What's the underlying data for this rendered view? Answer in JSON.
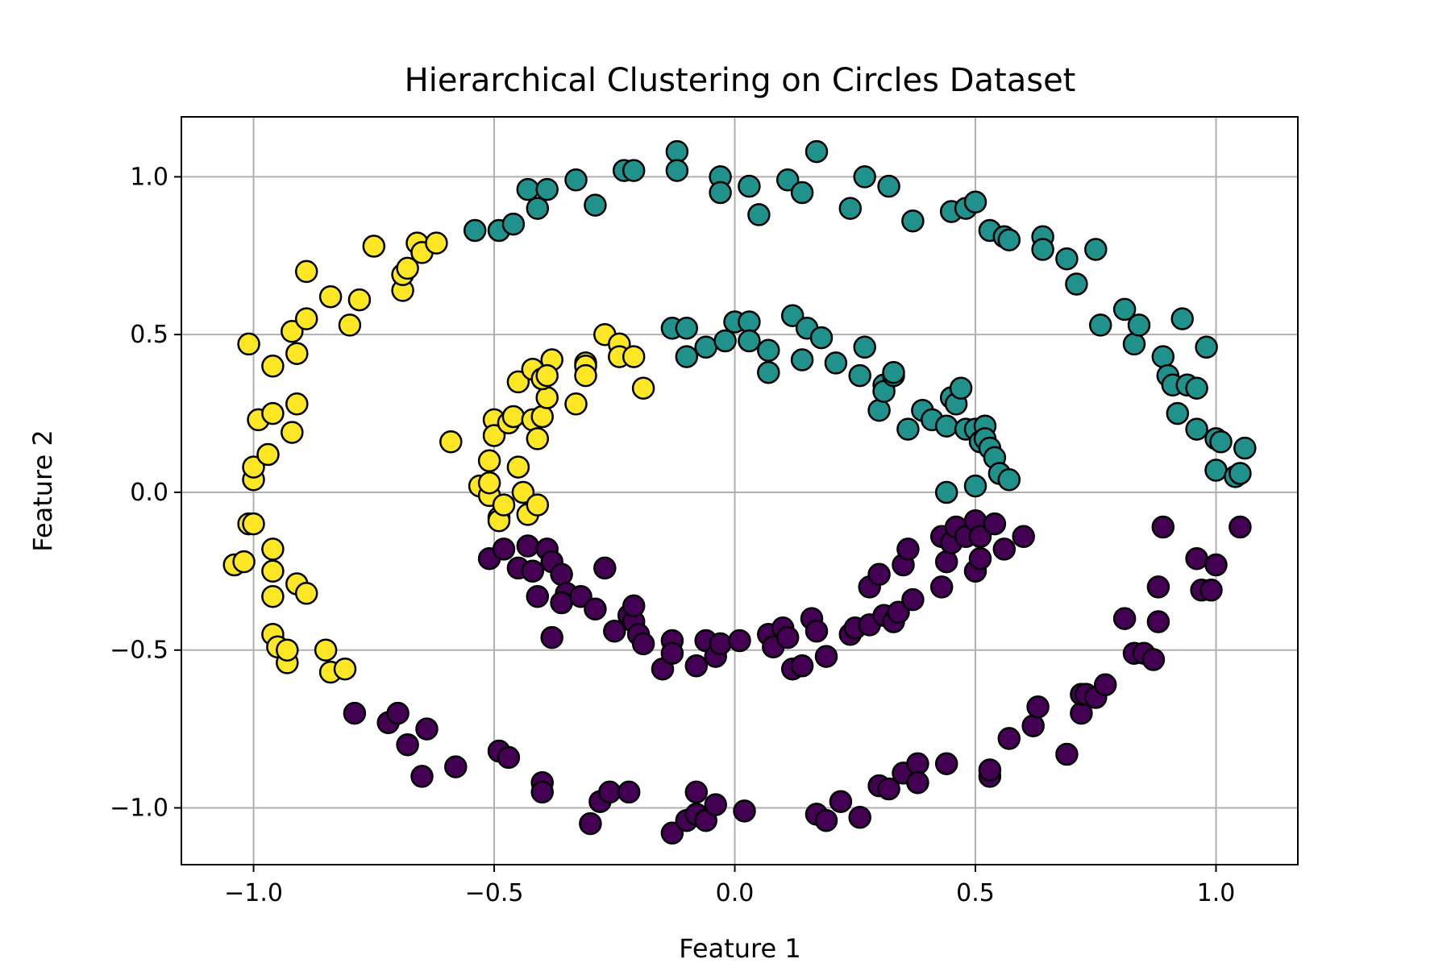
{
  "chart_data": {
    "type": "scatter",
    "title": "Hierarchical Clustering on Circles Dataset",
    "xlabel": "Feature 1",
    "ylabel": "Feature 2",
    "xlim": [
      -1.15,
      1.17
    ],
    "ylim": [
      -1.18,
      1.19
    ],
    "grid": true,
    "x_ticks": [
      -1.0,
      -0.5,
      0.0,
      0.5,
      1.0
    ],
    "x_tick_labels": [
      "−1.0",
      "−0.5",
      "0.0",
      "0.5",
      "1.0"
    ],
    "y_ticks": [
      -1.0,
      -0.5,
      0.0,
      0.5,
      1.0
    ],
    "y_tick_labels": [
      "−1.0",
      "−0.5",
      "0.0",
      "0.5",
      "1.0"
    ],
    "colormap": "viridis",
    "cluster_colors": [
      "#440154",
      "#21918c",
      "#fde725"
    ],
    "series": [
      {
        "color": "#440154",
        "points": [
          [
            -0.79,
            -0.7
          ],
          [
            -0.72,
            -0.73
          ],
          [
            -0.7,
            -0.7
          ],
          [
            -0.68,
            -0.8
          ],
          [
            -0.64,
            -0.75
          ],
          [
            -0.65,
            -0.9
          ],
          [
            -0.58,
            -0.87
          ],
          [
            -0.49,
            -0.82
          ],
          [
            -0.47,
            -0.84
          ],
          [
            -0.4,
            -0.92
          ],
          [
            -0.4,
            -0.95
          ],
          [
            -0.3,
            -1.05
          ],
          [
            -0.28,
            -0.98
          ],
          [
            -0.26,
            -0.95
          ],
          [
            -0.22,
            -0.95
          ],
          [
            -0.13,
            -1.08
          ],
          [
            -0.1,
            -1.04
          ],
          [
            -0.08,
            -0.95
          ],
          [
            -0.08,
            -1.02
          ],
          [
            -0.06,
            -1.04
          ],
          [
            -0.04,
            -0.99
          ],
          [
            0.02,
            -1.01
          ],
          [
            0.17,
            -1.02
          ],
          [
            0.19,
            -1.04
          ],
          [
            0.22,
            -0.98
          ],
          [
            0.26,
            -1.03
          ],
          [
            0.3,
            -0.93
          ],
          [
            0.32,
            -0.94
          ],
          [
            0.35,
            -0.89
          ],
          [
            0.38,
            -0.86
          ],
          [
            0.38,
            -0.92
          ],
          [
            0.44,
            -0.86
          ],
          [
            0.53,
            -0.9
          ],
          [
            0.53,
            -0.88
          ],
          [
            0.57,
            -0.78
          ],
          [
            0.62,
            -0.74
          ],
          [
            0.63,
            -0.68
          ],
          [
            0.69,
            -0.83
          ],
          [
            0.72,
            -0.7
          ],
          [
            0.72,
            -0.64
          ],
          [
            0.73,
            -0.64
          ],
          [
            0.75,
            -0.65
          ],
          [
            0.77,
            -0.61
          ],
          [
            0.81,
            -0.4
          ],
          [
            0.83,
            -0.51
          ],
          [
            0.85,
            -0.51
          ],
          [
            0.87,
            -0.53
          ],
          [
            0.88,
            -0.41
          ],
          [
            0.88,
            -0.3
          ],
          [
            0.89,
            -0.11
          ],
          [
            0.96,
            -0.21
          ],
          [
            0.97,
            -0.31
          ],
          [
            0.99,
            -0.31
          ],
          [
            1.0,
            -0.23
          ],
          [
            1.05,
            -0.11
          ],
          [
            -0.51,
            -0.21
          ],
          [
            -0.48,
            -0.18
          ],
          [
            -0.45,
            -0.24
          ],
          [
            -0.43,
            -0.17
          ],
          [
            -0.42,
            -0.25
          ],
          [
            -0.41,
            -0.33
          ],
          [
            -0.39,
            -0.18
          ],
          [
            -0.38,
            -0.22
          ],
          [
            -0.36,
            -0.26
          ],
          [
            -0.35,
            -0.32
          ],
          [
            -0.36,
            -0.35
          ],
          [
            -0.38,
            -0.46
          ],
          [
            -0.32,
            -0.33
          ],
          [
            -0.29,
            -0.37
          ],
          [
            -0.27,
            -0.24
          ],
          [
            -0.25,
            -0.44
          ],
          [
            -0.22,
            -0.39
          ],
          [
            -0.21,
            -0.41
          ],
          [
            -0.21,
            -0.36
          ],
          [
            -0.2,
            -0.45
          ],
          [
            -0.19,
            -0.48
          ],
          [
            -0.15,
            -0.56
          ],
          [
            -0.13,
            -0.47
          ],
          [
            -0.13,
            -0.51
          ],
          [
            -0.08,
            -0.55
          ],
          [
            -0.06,
            -0.47
          ],
          [
            -0.04,
            -0.52
          ],
          [
            -0.03,
            -0.48
          ],
          [
            0.01,
            -0.47
          ],
          [
            0.07,
            -0.45
          ],
          [
            0.08,
            -0.49
          ],
          [
            0.1,
            -0.43
          ],
          [
            0.11,
            -0.46
          ],
          [
            0.12,
            -0.56
          ],
          [
            0.14,
            -0.55
          ],
          [
            0.16,
            -0.4
          ],
          [
            0.17,
            -0.44
          ],
          [
            0.19,
            -0.52
          ],
          [
            0.24,
            -0.45
          ],
          [
            0.25,
            -0.43
          ],
          [
            0.28,
            -0.42
          ],
          [
            0.28,
            -0.3
          ],
          [
            0.3,
            -0.26
          ],
          [
            0.31,
            -0.39
          ],
          [
            0.33,
            -0.41
          ],
          [
            0.34,
            -0.38
          ],
          [
            0.35,
            -0.23
          ],
          [
            0.36,
            -0.18
          ],
          [
            0.37,
            -0.34
          ],
          [
            0.43,
            -0.3
          ],
          [
            0.43,
            -0.14
          ],
          [
            0.44,
            -0.22
          ],
          [
            0.45,
            -0.16
          ],
          [
            0.46,
            -0.11
          ],
          [
            0.48,
            -0.14
          ],
          [
            0.5,
            -0.09
          ],
          [
            0.5,
            -0.25
          ],
          [
            0.51,
            -0.21
          ],
          [
            0.51,
            -0.14
          ],
          [
            0.54,
            -0.1
          ],
          [
            0.56,
            -0.18
          ],
          [
            0.6,
            -0.14
          ]
        ]
      },
      {
        "color": "#21918c",
        "points": [
          [
            -0.54,
            0.83
          ],
          [
            -0.49,
            0.83
          ],
          [
            -0.46,
            0.85
          ],
          [
            -0.43,
            0.96
          ],
          [
            -0.41,
            0.9
          ],
          [
            -0.39,
            0.96
          ],
          [
            -0.33,
            0.99
          ],
          [
            -0.29,
            0.91
          ],
          [
            -0.23,
            1.02
          ],
          [
            -0.21,
            1.02
          ],
          [
            -0.12,
            1.08
          ],
          [
            -0.12,
            1.02
          ],
          [
            -0.03,
            1.0
          ],
          [
            -0.03,
            0.95
          ],
          [
            0.03,
            0.97
          ],
          [
            0.05,
            0.88
          ],
          [
            0.11,
            0.99
          ],
          [
            0.14,
            0.95
          ],
          [
            0.17,
            1.08
          ],
          [
            0.24,
            0.9
          ],
          [
            0.27,
            1.0
          ],
          [
            0.32,
            0.97
          ],
          [
            0.37,
            0.86
          ],
          [
            0.45,
            0.89
          ],
          [
            0.48,
            0.9
          ],
          [
            0.5,
            0.92
          ],
          [
            0.53,
            0.83
          ],
          [
            0.56,
            0.81
          ],
          [
            0.57,
            0.8
          ],
          [
            0.64,
            0.81
          ],
          [
            0.64,
            0.77
          ],
          [
            0.69,
            0.74
          ],
          [
            0.71,
            0.66
          ],
          [
            0.75,
            0.77
          ],
          [
            0.76,
            0.53
          ],
          [
            0.81,
            0.58
          ],
          [
            0.83,
            0.47
          ],
          [
            0.84,
            0.53
          ],
          [
            0.89,
            0.43
          ],
          [
            0.9,
            0.37
          ],
          [
            0.91,
            0.34
          ],
          [
            0.92,
            0.25
          ],
          [
            0.93,
            0.55
          ],
          [
            0.94,
            0.34
          ],
          [
            0.96,
            0.33
          ],
          [
            0.96,
            0.2
          ],
          [
            0.98,
            0.46
          ],
          [
            1.0,
            0.17
          ],
          [
            1.0,
            0.07
          ],
          [
            1.01,
            0.16
          ],
          [
            1.04,
            0.05
          ],
          [
            1.05,
            0.06
          ],
          [
            1.06,
            0.14
          ],
          [
            -0.13,
            0.52
          ],
          [
            -0.1,
            0.52
          ],
          [
            -0.1,
            0.43
          ],
          [
            -0.06,
            0.46
          ],
          [
            -0.02,
            0.48
          ],
          [
            0.0,
            0.54
          ],
          [
            0.03,
            0.54
          ],
          [
            0.03,
            0.48
          ],
          [
            0.07,
            0.45
          ],
          [
            0.07,
            0.38
          ],
          [
            0.12,
            0.56
          ],
          [
            0.14,
            0.42
          ],
          [
            0.15,
            0.52
          ],
          [
            0.18,
            0.49
          ],
          [
            0.21,
            0.41
          ],
          [
            0.26,
            0.37
          ],
          [
            0.27,
            0.46
          ],
          [
            0.3,
            0.26
          ],
          [
            0.31,
            0.34
          ],
          [
            0.31,
            0.32
          ],
          [
            0.33,
            0.37
          ],
          [
            0.33,
            0.38
          ],
          [
            0.36,
            0.2
          ],
          [
            0.39,
            0.26
          ],
          [
            0.41,
            0.23
          ],
          [
            0.44,
            0.0
          ],
          [
            0.44,
            0.21
          ],
          [
            0.45,
            0.3
          ],
          [
            0.46,
            0.28
          ],
          [
            0.47,
            0.33
          ],
          [
            0.48,
            0.2
          ],
          [
            0.5,
            0.2
          ],
          [
            0.5,
            0.02
          ],
          [
            0.51,
            0.16
          ],
          [
            0.52,
            0.21
          ],
          [
            0.52,
            0.17
          ],
          [
            0.53,
            0.14
          ],
          [
            0.54,
            0.11
          ],
          [
            0.55,
            0.06
          ],
          [
            0.57,
            0.04
          ]
        ]
      },
      {
        "color": "#fde725",
        "points": [
          [
            -1.04,
            -0.23
          ],
          [
            -1.02,
            -0.22
          ],
          [
            -1.01,
            -0.1
          ],
          [
            -1.01,
            0.47
          ],
          [
            -1.0,
            -0.1
          ],
          [
            -1.0,
            0.04
          ],
          [
            -1.0,
            0.08
          ],
          [
            -0.99,
            0.23
          ],
          [
            -0.97,
            0.12
          ],
          [
            -0.96,
            -0.18
          ],
          [
            -0.96,
            -0.25
          ],
          [
            -0.96,
            0.4
          ],
          [
            -0.96,
            0.25
          ],
          [
            -0.96,
            -0.33
          ],
          [
            -0.96,
            -0.45
          ],
          [
            -0.95,
            -0.49
          ],
          [
            -0.93,
            -0.54
          ],
          [
            -0.93,
            -0.5
          ],
          [
            -0.92,
            0.51
          ],
          [
            -0.92,
            0.19
          ],
          [
            -0.91,
            0.28
          ],
          [
            -0.91,
            0.44
          ],
          [
            -0.91,
            -0.29
          ],
          [
            -0.89,
            -0.32
          ],
          [
            -0.89,
            0.7
          ],
          [
            -0.89,
            0.55
          ],
          [
            -0.85,
            -0.5
          ],
          [
            -0.84,
            0.62
          ],
          [
            -0.84,
            -0.57
          ],
          [
            -0.81,
            -0.56
          ],
          [
            -0.8,
            0.53
          ],
          [
            -0.78,
            0.61
          ],
          [
            -0.75,
            0.78
          ],
          [
            -0.69,
            0.64
          ],
          [
            -0.69,
            0.69
          ],
          [
            -0.68,
            0.71
          ],
          [
            -0.66,
            0.79
          ],
          [
            -0.65,
            0.76
          ],
          [
            -0.62,
            0.79
          ],
          [
            -0.59,
            0.16
          ],
          [
            -0.53,
            0.02
          ],
          [
            -0.51,
            -0.01
          ],
          [
            -0.51,
            0.1
          ],
          [
            -0.5,
            0.23
          ],
          [
            -0.5,
            0.18
          ],
          [
            -0.49,
            -0.08
          ],
          [
            -0.49,
            -0.09
          ],
          [
            -0.47,
            0.22
          ],
          [
            -0.46,
            0.24
          ],
          [
            -0.45,
            0.35
          ],
          [
            -0.45,
            0.08
          ],
          [
            -0.44,
            0.0
          ],
          [
            -0.43,
            -0.07
          ],
          [
            -0.42,
            0.39
          ],
          [
            -0.42,
            0.23
          ],
          [
            -0.41,
            0.17
          ],
          [
            -0.41,
            -0.04
          ],
          [
            -0.4,
            0.24
          ],
          [
            -0.39,
            0.3
          ],
          [
            -0.38,
            0.42
          ],
          [
            -0.33,
            0.28
          ],
          [
            -0.31,
            0.41
          ],
          [
            -0.31,
            0.4
          ],
          [
            -0.31,
            0.37
          ],
          [
            -0.27,
            0.5
          ],
          [
            -0.24,
            0.47
          ],
          [
            -0.24,
            0.43
          ],
          [
            -0.21,
            0.43
          ],
          [
            -0.19,
            0.33
          ],
          [
            -0.4,
            0.36
          ],
          [
            -0.39,
            0.37
          ],
          [
            -0.51,
            0.03
          ],
          [
            -0.48,
            -0.04
          ]
        ]
      }
    ]
  }
}
